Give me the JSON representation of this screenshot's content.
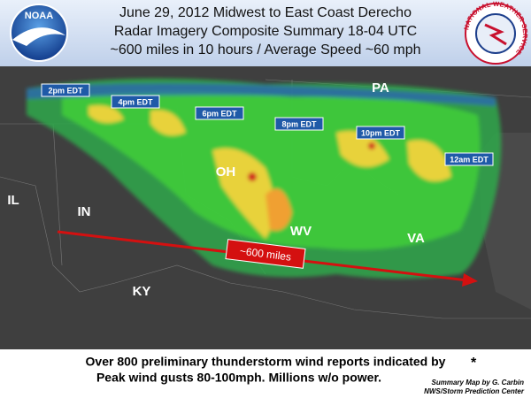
{
  "header": {
    "lines": [
      "June 29, 2012 Midwest to East Coast Derecho",
      "Radar Imagery Composite Summary 18-04 UTC",
      "~600 miles in 10 hours / Average Speed ~60 mph"
    ],
    "left_logo": "NOAA",
    "right_logo": "NATIONAL WEATHER SERVICE"
  },
  "map": {
    "states": [
      "PA",
      "OH",
      "IN",
      "IL",
      "WV",
      "VA",
      "KY"
    ],
    "times": [
      "2pm EDT",
      "4pm EDT",
      "6pm EDT",
      "8pm EDT",
      "10pm EDT",
      "12am EDT"
    ],
    "path_label": "~600 miles"
  },
  "footer": {
    "lines": [
      "Over 800 preliminary thunderstorm wind reports indicated by",
      "Peak wind gusts 80-100mph. Millions w/o power."
    ],
    "symbol": "*",
    "credit": [
      "Summary Map by G. Carbin",
      "NWS/Storm Prediction Center"
    ]
  }
}
